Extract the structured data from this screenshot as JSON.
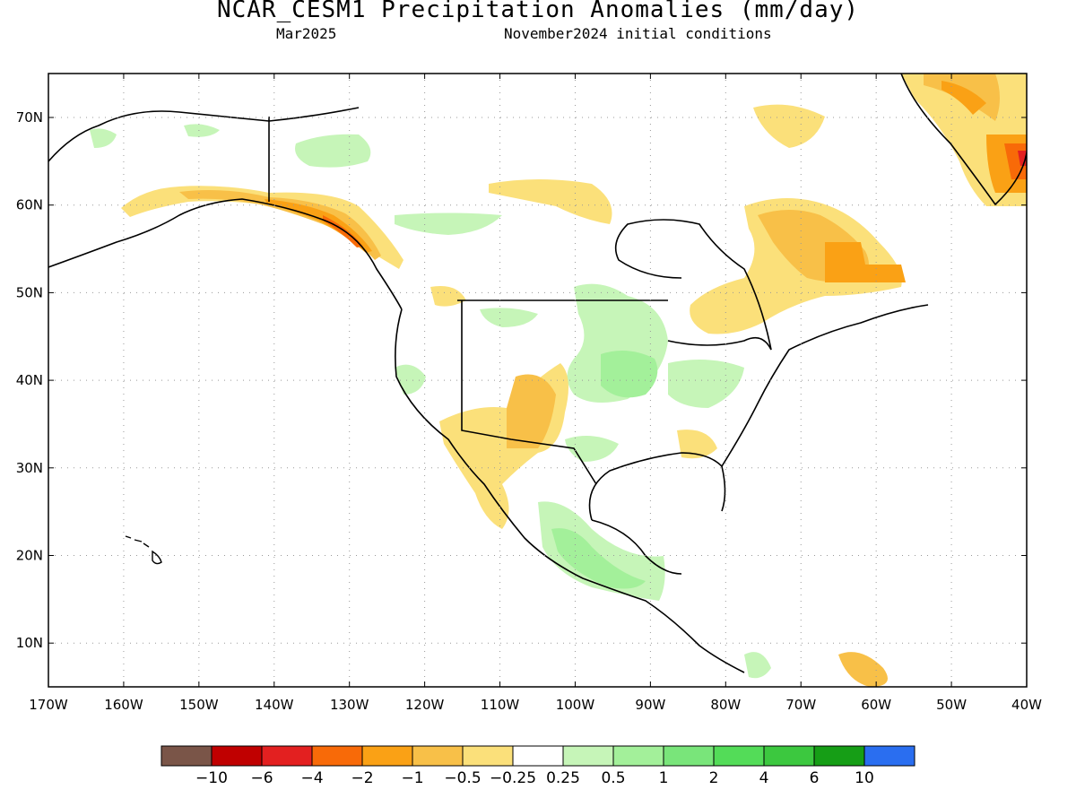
{
  "title": "NCAR_CESM1 Precipitation Anomalies (mm/day)",
  "subtitle_left": "Mar2025",
  "subtitle_right": "November2024 initial conditions",
  "lat_labels": [
    "70N",
    "60N",
    "50N",
    "40N",
    "30N",
    "20N",
    "10N"
  ],
  "lon_labels": [
    "170W",
    "160W",
    "150W",
    "140W",
    "130W",
    "120W",
    "110W",
    "100W",
    "90W",
    "80W",
    "70W",
    "60W",
    "50W",
    "40W"
  ],
  "colorbar": {
    "colors": [
      "#7a5548",
      "#c00000",
      "#e32020",
      "#f86a08",
      "#faa115",
      "#f8c048",
      "#fbe07a",
      "#ffffff",
      "#c6f5b8",
      "#a3f09a",
      "#79e57a",
      "#53dc58",
      "#3cc83f",
      "#169e16",
      "#2a6ef0"
    ],
    "labels": [
      "−10",
      "−6",
      "−4",
      "−2",
      "−1",
      "−0.5",
      "−0.25",
      "0.25",
      "0.5",
      "1",
      "2",
      "4",
      "6",
      "10"
    ]
  }
}
